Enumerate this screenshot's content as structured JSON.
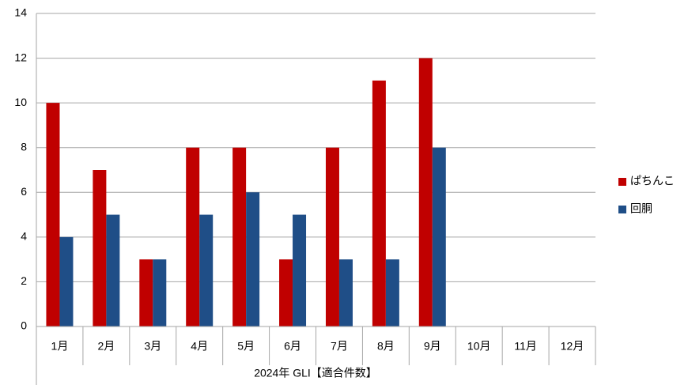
{
  "chart_data": {
    "type": "bar",
    "x_label": "2024年 GLI【適合件数】",
    "categories": [
      "1月",
      "2月",
      "3月",
      "4月",
      "5月",
      "6月",
      "7月",
      "8月",
      "9月",
      "10月",
      "11月",
      "12月"
    ],
    "series": [
      {
        "name": "ぱちんこ",
        "color": "#c00000",
        "values": [
          10,
          7,
          3,
          8,
          8,
          3,
          8,
          11,
          12,
          null,
          null,
          null
        ]
      },
      {
        "name": "回胴",
        "color": "#1f4e87",
        "values": [
          4,
          5,
          3,
          5,
          6,
          5,
          3,
          3,
          8,
          null,
          null,
          null
        ]
      }
    ],
    "ylim": [
      0,
      14
    ],
    "yticks": [
      0,
      2,
      4,
      6,
      8,
      10,
      12,
      14
    ],
    "grid": true,
    "legend": "right"
  }
}
